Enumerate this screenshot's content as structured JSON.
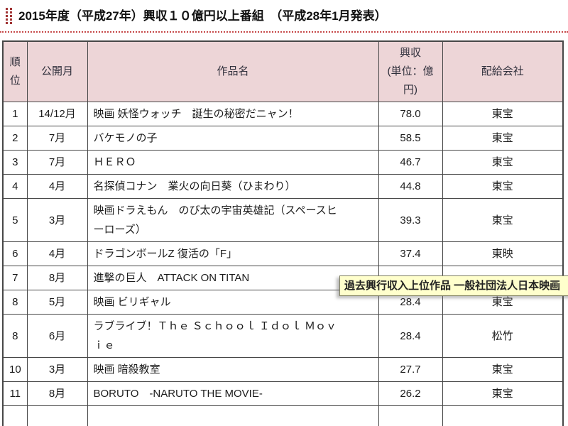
{
  "page": {
    "title": "2015年度（平成27年）興収１０億円以上番組　（平成28年1月発表）"
  },
  "table": {
    "headers": {
      "rank": "順\n位",
      "month": "公開月",
      "title": "作品名",
      "revenue": "興収\n(単位：億\n円)",
      "distributor": "配給会社"
    },
    "rows": [
      {
        "rank": "1",
        "month": "14/12月",
        "title": "映画 妖怪ウォッチ　誕生の秘密だニャン！",
        "revenue": "78.0",
        "distributor": "東宝"
      },
      {
        "rank": "2",
        "month": "7月",
        "title": "バケモノの子",
        "revenue": "58.5",
        "distributor": "東宝"
      },
      {
        "rank": "3",
        "month": "7月",
        "title": "ＨＥＲＯ",
        "revenue": "46.7",
        "distributor": "東宝"
      },
      {
        "rank": "4",
        "month": "4月",
        "title": "名探偵コナン　業火の向日葵（ひまわり）",
        "revenue": "44.8",
        "distributor": "東宝"
      },
      {
        "rank": "5",
        "month": "3月",
        "title": "映画ドラえもん　のび太の宇宙英雄記（スペースヒ\nーローズ）",
        "revenue": "39.3",
        "distributor": "東宝"
      },
      {
        "rank": "6",
        "month": "4月",
        "title": "ドラゴンボールZ 復活の「F」",
        "revenue": "37.4",
        "distributor": "東映"
      },
      {
        "rank": "7",
        "month": "8月",
        "title": "進撃の巨人　ATTACK ON TITAN",
        "revenue": "",
        "distributor": ""
      },
      {
        "rank": "8",
        "month": "5月",
        "title": "映画 ビリギャル",
        "revenue": "28.4",
        "distributor": "東宝"
      },
      {
        "rank": "8",
        "month": "6月",
        "title": "ラブライブ！Ｔｈｅ Ｓｃｈｏｏｌ Ｉｄｏｌ Ｍｏｖ\nｉｅ",
        "revenue": "28.4",
        "distributor": "松竹"
      },
      {
        "rank": "10",
        "month": "3月",
        "title": "映画 暗殺教室",
        "revenue": "27.7",
        "distributor": "東宝"
      },
      {
        "rank": "11",
        "month": "8月",
        "title": "BORUTO　-NARUTO THE MOVIE-",
        "revenue": "26.2",
        "distributor": "東宝"
      }
    ]
  },
  "tooltip": {
    "text": "過去興行収入上位作品 一般社団法人日本映画",
    "background": "#ffffcc"
  },
  "colors": {
    "header_bg": "#edd5d7",
    "table_border": "#474747",
    "accent_red": "#c64848",
    "bullet_red": "#a03434",
    "tooltip_bg": "#ffffcc"
  }
}
